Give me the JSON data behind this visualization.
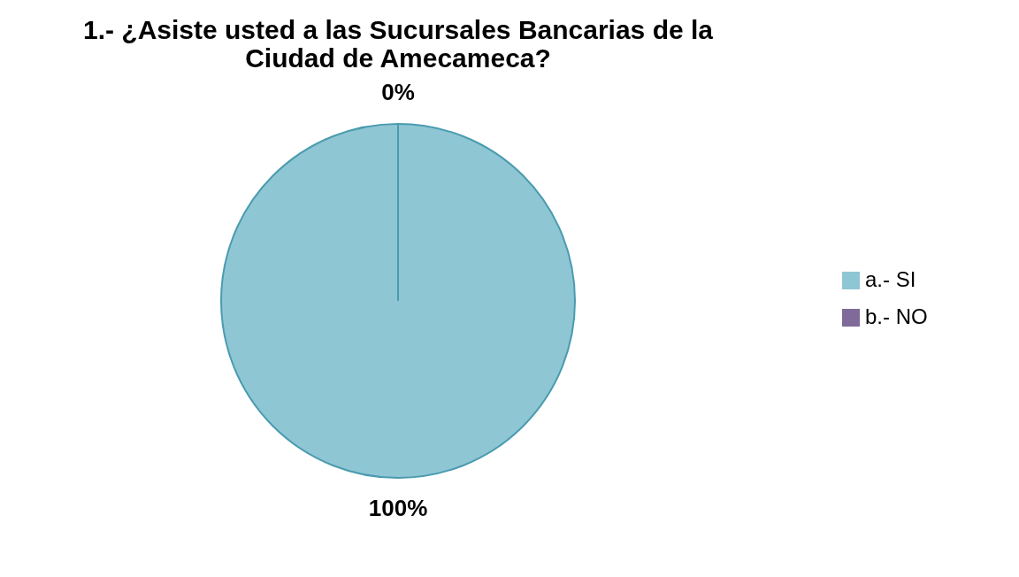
{
  "chart_data": {
    "type": "pie",
    "title": "1.- ¿Asiste usted a las Sucursales Bancarias de la Ciudad de Amecameca?",
    "categories": [
      "a.- SI",
      "b.- NO"
    ],
    "values": [
      100,
      0
    ],
    "colors": [
      "#8fc6d3",
      "#7f6a9a"
    ],
    "value_labels": [
      "100%",
      "0%"
    ],
    "legend": "right"
  }
}
